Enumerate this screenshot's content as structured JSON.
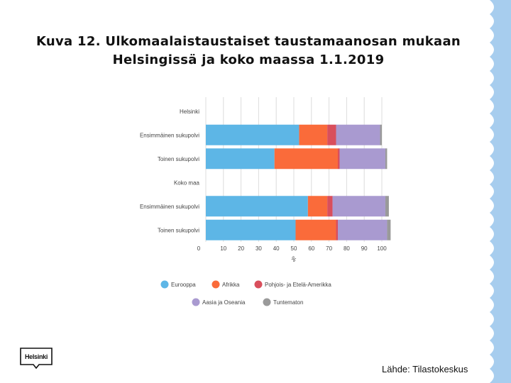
{
  "title_lines": [
    "Kuva 12. Ulkomaalaistaustaiset taustamaanosan mukaan",
    "Helsingissä ja koko maassa 1.1.2019"
  ],
  "source": "Lähde: Tilastokeskus",
  "logo_text": "Helsinki",
  "colors": {
    "Eurooppa": "#5db6e6",
    "Afrikka": "#fa6b3a",
    "Pohjois- ja Etelä-Amerikka": "#d94f5c",
    "Aasia ja Oseania": "#a99ad0",
    "Tuntematon": "#9a9a9a",
    "deco": "#a7cdee"
  },
  "chart_data": {
    "type": "bar",
    "orientation": "horizontal",
    "stacked": true,
    "xlabel": "%",
    "xlim": [
      0,
      100
    ],
    "xticks": [
      0,
      10,
      20,
      30,
      40,
      50,
      60,
      70,
      80,
      90,
      100
    ],
    "grid": true,
    "legend_position": "bottom",
    "rows": [
      {
        "label": "Helsinki",
        "group_header": true
      },
      {
        "label": "Ensimmäinen sukupolvi",
        "values": [
          53,
          16,
          5,
          25,
          1
        ]
      },
      {
        "label": "Toinen sukupolvi",
        "values": [
          39,
          36,
          1,
          26,
          1
        ]
      },
      {
        "label": "Koko maa",
        "group_header": true
      },
      {
        "label": "Ensimmäinen sukupolvi",
        "values": [
          58,
          11,
          3,
          30,
          2
        ]
      },
      {
        "label": "Toinen sukupolvi",
        "values": [
          51,
          23,
          1,
          28,
          2
        ]
      }
    ],
    "series": [
      {
        "name": "Eurooppa"
      },
      {
        "name": "Afrikka"
      },
      {
        "name": "Pohjois- ja Etelä-Amerikka"
      },
      {
        "name": "Aasia ja Oseania"
      },
      {
        "name": "Tuntematon"
      }
    ]
  }
}
